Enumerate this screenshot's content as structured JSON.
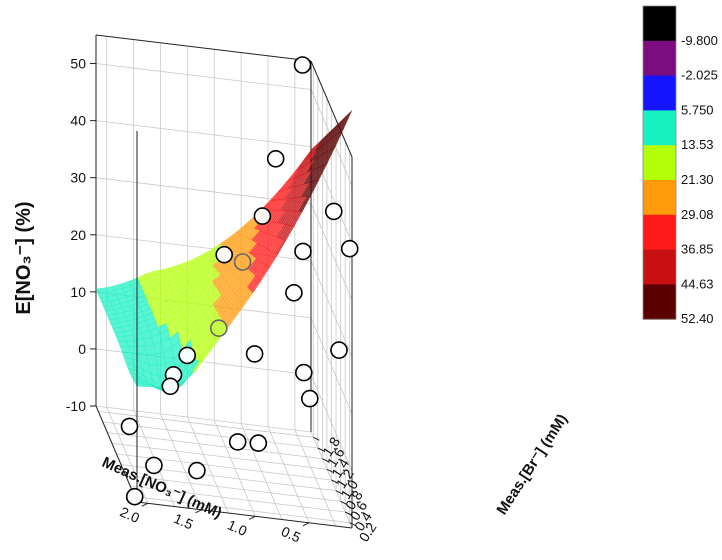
{
  "chart_data": {
    "type": "surface3d",
    "title": "",
    "zlabel": "E[NO₃⁻] (%)",
    "xlabel": "Meas.[NO₃⁻] (mM)",
    "ylabel": "Meas.[Br⁻] (mM)",
    "z_ticks": [
      "-10",
      "0",
      "10",
      "20",
      "30",
      "40",
      "50"
    ],
    "x_ticks": [
      "0.5",
      "1.0",
      "1.5",
      "2.0"
    ],
    "y_ticks": [
      "0.2",
      "0.4",
      "0.6",
      "0.8",
      "1.0",
      "1.2",
      "1.4",
      "1.6",
      "1.8"
    ],
    "xlim": [
      0.1,
      2.1
    ],
    "ylim": [
      0.1,
      1.9
    ],
    "zlim": [
      -10,
      55
    ],
    "colorbar": {
      "labels": [
        "-9.800",
        "-2.025",
        "5.750",
        "13.53",
        "21.30",
        "29.08",
        "36.85",
        "44.63",
        "52.40"
      ],
      "levels": [
        -9.8,
        -2.025,
        5.75,
        13.53,
        21.3,
        29.08,
        36.85,
        44.63,
        52.4
      ],
      "colors": [
        "#000000",
        "#7b0d7e",
        "#1414ff",
        "#18f0c2",
        "#b4ff0a",
        "#ff9a0a",
        "#ff1a1a",
        "#c80f12",
        "#5a0000"
      ]
    },
    "points": [
      {
        "x": 0.2,
        "y": 1.8,
        "z": 55
      },
      {
        "x": 0.1,
        "y": 0.9,
        "z": 38
      },
      {
        "x": 0.1,
        "y": 0.2,
        "z": 38
      },
      {
        "x": 0.2,
        "y": 0.2,
        "z": 20
      },
      {
        "x": 0.45,
        "y": 0.6,
        "z": 33
      },
      {
        "x": 0.45,
        "y": 1.0,
        "z": 22
      },
      {
        "x": 0.4,
        "y": 0.8,
        "z": 10
      },
      {
        "x": 0.7,
        "y": 1.2,
        "z": 33
      },
      {
        "x": 0.8,
        "y": 1.6,
        "z": 21
      },
      {
        "x": 0.95,
        "y": 1.7,
        "z": 21
      },
      {
        "x": 0.45,
        "y": 1.8,
        "z": 38
      },
      {
        "x": 0.9,
        "y": 0.6,
        "z": 14
      },
      {
        "x": 0.45,
        "y": 0.3,
        "z": 10
      },
      {
        "x": 0.95,
        "y": 0.2,
        "z": 2
      },
      {
        "x": 1.4,
        "y": 1.2,
        "z": 7
      },
      {
        "x": 1.0,
        "y": 1.7,
        "z": 8
      },
      {
        "x": 1.4,
        "y": 1.8,
        "z": -2
      },
      {
        "x": 1.1,
        "y": 0.4,
        "z": 0
      },
      {
        "x": 1.6,
        "y": 1.0,
        "z": 3
      },
      {
        "x": 1.5,
        "y": 0.3,
        "z": -5
      },
      {
        "x": 2.0,
        "y": 0.9,
        "z": -4
      },
      {
        "x": 1.9,
        "y": 0.3,
        "z": -5
      },
      {
        "x": 2.1,
        "y": 0.2,
        "z": -10
      }
    ]
  }
}
